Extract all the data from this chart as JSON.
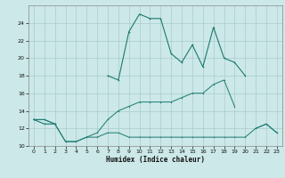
{
  "xlabel": "Humidex (Indice chaleur)",
  "x_values": [
    0,
    1,
    2,
    3,
    4,
    5,
    6,
    7,
    8,
    9,
    10,
    11,
    12,
    13,
    14,
    15,
    16,
    17,
    18,
    19,
    20,
    21,
    22,
    23
  ],
  "line1": [
    13,
    13,
    12.5,
    10.5,
    10.5,
    11,
    11,
    11.5,
    11.5,
    11,
    11,
    11,
    11,
    11,
    11,
    11,
    11,
    11,
    11,
    11,
    11,
    12,
    12.5,
    11.5
  ],
  "line2": [
    13,
    13,
    12.5,
    10.5,
    10.5,
    11,
    11.5,
    13,
    14,
    14.5,
    15,
    15,
    15,
    15,
    15.5,
    16,
    16,
    17,
    17.5,
    14.5,
    null,
    12,
    12.5,
    11.5
  ],
  "line3": [
    13,
    12.5,
    12.5,
    null,
    null,
    null,
    null,
    18,
    17.5,
    23,
    25,
    24.5,
    24.5,
    20.5,
    19.5,
    21.5,
    19,
    23.5,
    20,
    19.5,
    18,
    null,
    null,
    null
  ],
  "background_color": "#cce8e8",
  "line_color": "#1a7a6e",
  "grid_color": "#aacccc",
  "ylim": [
    10,
    26
  ],
  "xlim": [
    -0.5,
    23.5
  ],
  "yticks": [
    10,
    12,
    14,
    16,
    18,
    20,
    22,
    24
  ],
  "xticks": [
    0,
    1,
    2,
    3,
    4,
    5,
    6,
    7,
    8,
    9,
    10,
    11,
    12,
    13,
    14,
    15,
    16,
    17,
    18,
    19,
    20,
    21,
    22,
    23
  ]
}
